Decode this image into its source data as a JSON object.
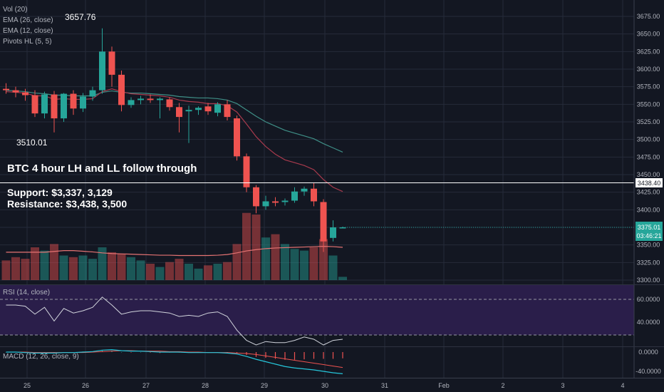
{
  "theme": {
    "background": "#131722",
    "grid": "#262b3a",
    "up": "#26a69a",
    "down": "#ef5350",
    "ema26": "#3f8f87",
    "ema12": "#a83a4d",
    "vol_ma": "#e57373",
    "rsi_band": "#2a1e4a",
    "rsi_line": "#d1d4dc",
    "macd_line": "#26c6da",
    "signal_line": "#ef5350"
  },
  "indicators": {
    "vol": "Vol (20)",
    "ema26": "EMA (26, close)",
    "ema12": "EMA (12, close)",
    "pivots": "Pivots HL (5, 5)",
    "rsi": "RSI (14, close)",
    "macd": "MACD (12, 26, close, 9)"
  },
  "annotations": {
    "title": "BTC 4 hour LH and LL follow through",
    "support": "Support: $3,337, 3,129",
    "resistance": "Resistance: $3,438, 3,500",
    "pivot_high": "3657.76",
    "pivot_low": "3510.01"
  },
  "price_axis": {
    "ticks": [
      "3675.00",
      "3650.00",
      "3625.00",
      "3600.00",
      "3575.00",
      "3550.00",
      "3525.00",
      "3500.00",
      "3475.00",
      "3450.00",
      "3425.00",
      "3400.00",
      "3375.00",
      "3350.00",
      "3325.00",
      "3300.00"
    ],
    "resistance_tag": "3438.40",
    "last_price_tag": "3375.01",
    "countdown_tag": "03:46:21"
  },
  "rsi_axis": {
    "ticks": [
      "60.0000",
      "40.0000"
    ]
  },
  "macd_axis": {
    "ticks": [
      "0.0000",
      "-40.0000"
    ]
  },
  "time_axis": {
    "labels": [
      "25",
      "26",
      "27",
      "28",
      "29",
      "30",
      "31",
      "Feb",
      "2",
      "3",
      "4"
    ]
  },
  "chart_data": {
    "type": "candlestick",
    "resistance_level": 3438.4,
    "ylim": [
      3300,
      3690
    ],
    "candles": [
      {
        "o": 3572,
        "h": 3580,
        "l": 3565,
        "c": 3570
      },
      {
        "o": 3570,
        "h": 3575,
        "l": 3560,
        "c": 3567
      },
      {
        "o": 3567,
        "h": 3572,
        "l": 3555,
        "c": 3563
      },
      {
        "o": 3563,
        "h": 3570,
        "l": 3532,
        "c": 3537
      },
      {
        "o": 3537,
        "h": 3568,
        "l": 3530,
        "c": 3564
      },
      {
        "o": 3564,
        "h": 3569,
        "l": 3510,
        "c": 3530
      },
      {
        "o": 3530,
        "h": 3566,
        "l": 3525,
        "c": 3565
      },
      {
        "o": 3565,
        "h": 3570,
        "l": 3535,
        "c": 3544
      },
      {
        "o": 3544,
        "h": 3566,
        "l": 3539,
        "c": 3561
      },
      {
        "o": 3561,
        "h": 3575,
        "l": 3555,
        "c": 3570
      },
      {
        "o": 3570,
        "h": 3658,
        "l": 3565,
        "c": 3625
      },
      {
        "o": 3625,
        "h": 3632,
        "l": 3575,
        "c": 3592
      },
      {
        "o": 3592,
        "h": 3598,
        "l": 3540,
        "c": 3549
      },
      {
        "o": 3549,
        "h": 3560,
        "l": 3545,
        "c": 3556
      },
      {
        "o": 3556,
        "h": 3562,
        "l": 3550,
        "c": 3558
      },
      {
        "o": 3558,
        "h": 3564,
        "l": 3552,
        "c": 3556
      },
      {
        "o": 3556,
        "h": 3560,
        "l": 3530,
        "c": 3558
      },
      {
        "o": 3557,
        "h": 3560,
        "l": 3541,
        "c": 3546
      },
      {
        "o": 3546,
        "h": 3552,
        "l": 3510,
        "c": 3532
      },
      {
        "o": 3540,
        "h": 3548,
        "l": 3495,
        "c": 3542
      },
      {
        "o": 3542,
        "h": 3547,
        "l": 3535,
        "c": 3545
      },
      {
        "o": 3547,
        "h": 3552,
        "l": 3535,
        "c": 3540
      },
      {
        "o": 3538,
        "h": 3553,
        "l": 3533,
        "c": 3550
      },
      {
        "o": 3550,
        "h": 3556,
        "l": 3527,
        "c": 3532
      },
      {
        "o": 3530,
        "h": 3534,
        "l": 3470,
        "c": 3476
      },
      {
        "o": 3476,
        "h": 3480,
        "l": 3425,
        "c": 3432
      },
      {
        "o": 3432,
        "h": 3435,
        "l": 3395,
        "c": 3405
      },
      {
        "o": 3405,
        "h": 3420,
        "l": 3400,
        "c": 3412
      },
      {
        "o": 3412,
        "h": 3418,
        "l": 3405,
        "c": 3410
      },
      {
        "o": 3411,
        "h": 3416,
        "l": 3406,
        "c": 3413
      },
      {
        "o": 3413,
        "h": 3432,
        "l": 3410,
        "c": 3426
      },
      {
        "o": 3426,
        "h": 3433,
        "l": 3420,
        "c": 3430
      },
      {
        "o": 3430,
        "h": 3438,
        "l": 3405,
        "c": 3412
      },
      {
        "o": 3411,
        "h": 3415,
        "l": 3340,
        "c": 3355
      },
      {
        "o": 3360,
        "h": 3385,
        "l": 3355,
        "c": 3375
      },
      {
        "o": 3375,
        "h": 3376,
        "l": 3374,
        "c": 3375
      }
    ],
    "volume": [
      12,
      14,
      13,
      20,
      18,
      22,
      15,
      14,
      15,
      13,
      20,
      17,
      16,
      14,
      12,
      10,
      8,
      11,
      13,
      10,
      7,
      9,
      10,
      11,
      22,
      41,
      40,
      26,
      28,
      22,
      19,
      18,
      20,
      25,
      15,
      2
    ],
    "vol_ma": [
      17,
      17,
      17,
      17,
      17,
      17.5,
      18,
      18,
      17.6,
      17.2,
      16.6,
      16.2,
      16,
      15.8,
      15.6,
      15.4,
      15.2,
      15.2,
      15,
      15,
      15,
      15,
      15.2,
      15.6,
      16.6,
      17.8,
      18.6,
      19.2,
      19.6,
      19.8,
      20,
      20.2,
      20.4,
      20.6,
      20.4,
      20
    ],
    "ema26": [
      3570,
      3569,
      3568,
      3566,
      3565,
      3563,
      3563,
      3562,
      3562,
      3562,
      3567,
      3569,
      3567,
      3566,
      3566,
      3565,
      3564,
      3563,
      3561,
      3560,
      3559,
      3559,
      3558,
      3556,
      3551,
      3542,
      3533,
      3525,
      3519,
      3513,
      3509,
      3505,
      3501,
      3494,
      3488,
      3482
    ],
    "ema12": [
      3568,
      3567,
      3566,
      3562,
      3562,
      3557,
      3558,
      3557,
      3557,
      3558,
      3568,
      3572,
      3568,
      3565,
      3564,
      3563,
      3562,
      3560,
      3556,
      3554,
      3553,
      3551,
      3551,
      3548,
      3539,
      3522,
      3504,
      3490,
      3479,
      3471,
      3467,
      3463,
      3457,
      3443,
      3432,
      3426
    ],
    "rsi": [
      55,
      55,
      54,
      47,
      53,
      41,
      52,
      48,
      50,
      53,
      62,
      55,
      47,
      49,
      50,
      50,
      49,
      48,
      45,
      46,
      45,
      48,
      49,
      45,
      33,
      24,
      20,
      23,
      22,
      22,
      24,
      27,
      25,
      20,
      24,
      25
    ],
    "macd": [
      0,
      0,
      -1,
      -2,
      -2,
      -2,
      -1,
      -1,
      0,
      1,
      4,
      5,
      3,
      2,
      2,
      1,
      0,
      0,
      0,
      -1,
      -1,
      -1,
      -1,
      -2,
      -4,
      -9,
      -15,
      -20,
      -25,
      -30,
      -33,
      -35,
      -37,
      -40,
      -43,
      -45
    ],
    "signal": [
      0,
      0,
      0,
      -1,
      -1,
      -1,
      -1,
      -1,
      -1,
      0,
      1,
      2,
      3,
      3,
      2,
      2,
      2,
      1,
      1,
      0,
      0,
      -1,
      -1,
      -1,
      -2,
      -3,
      -5,
      -8,
      -11,
      -14,
      -17,
      -20,
      -23,
      -26,
      -29,
      -32
    ],
    "histogram": [
      0,
      0,
      -1,
      -1,
      -1,
      -1,
      0,
      0,
      1,
      1,
      3,
      3,
      0,
      -1,
      0,
      -1,
      -2,
      -1,
      -1,
      -1,
      -1,
      0,
      0,
      -1,
      -2,
      -6,
      -10,
      -12,
      -14,
      -16,
      -16,
      -15,
      -14,
      -14,
      -14,
      -13
    ]
  }
}
